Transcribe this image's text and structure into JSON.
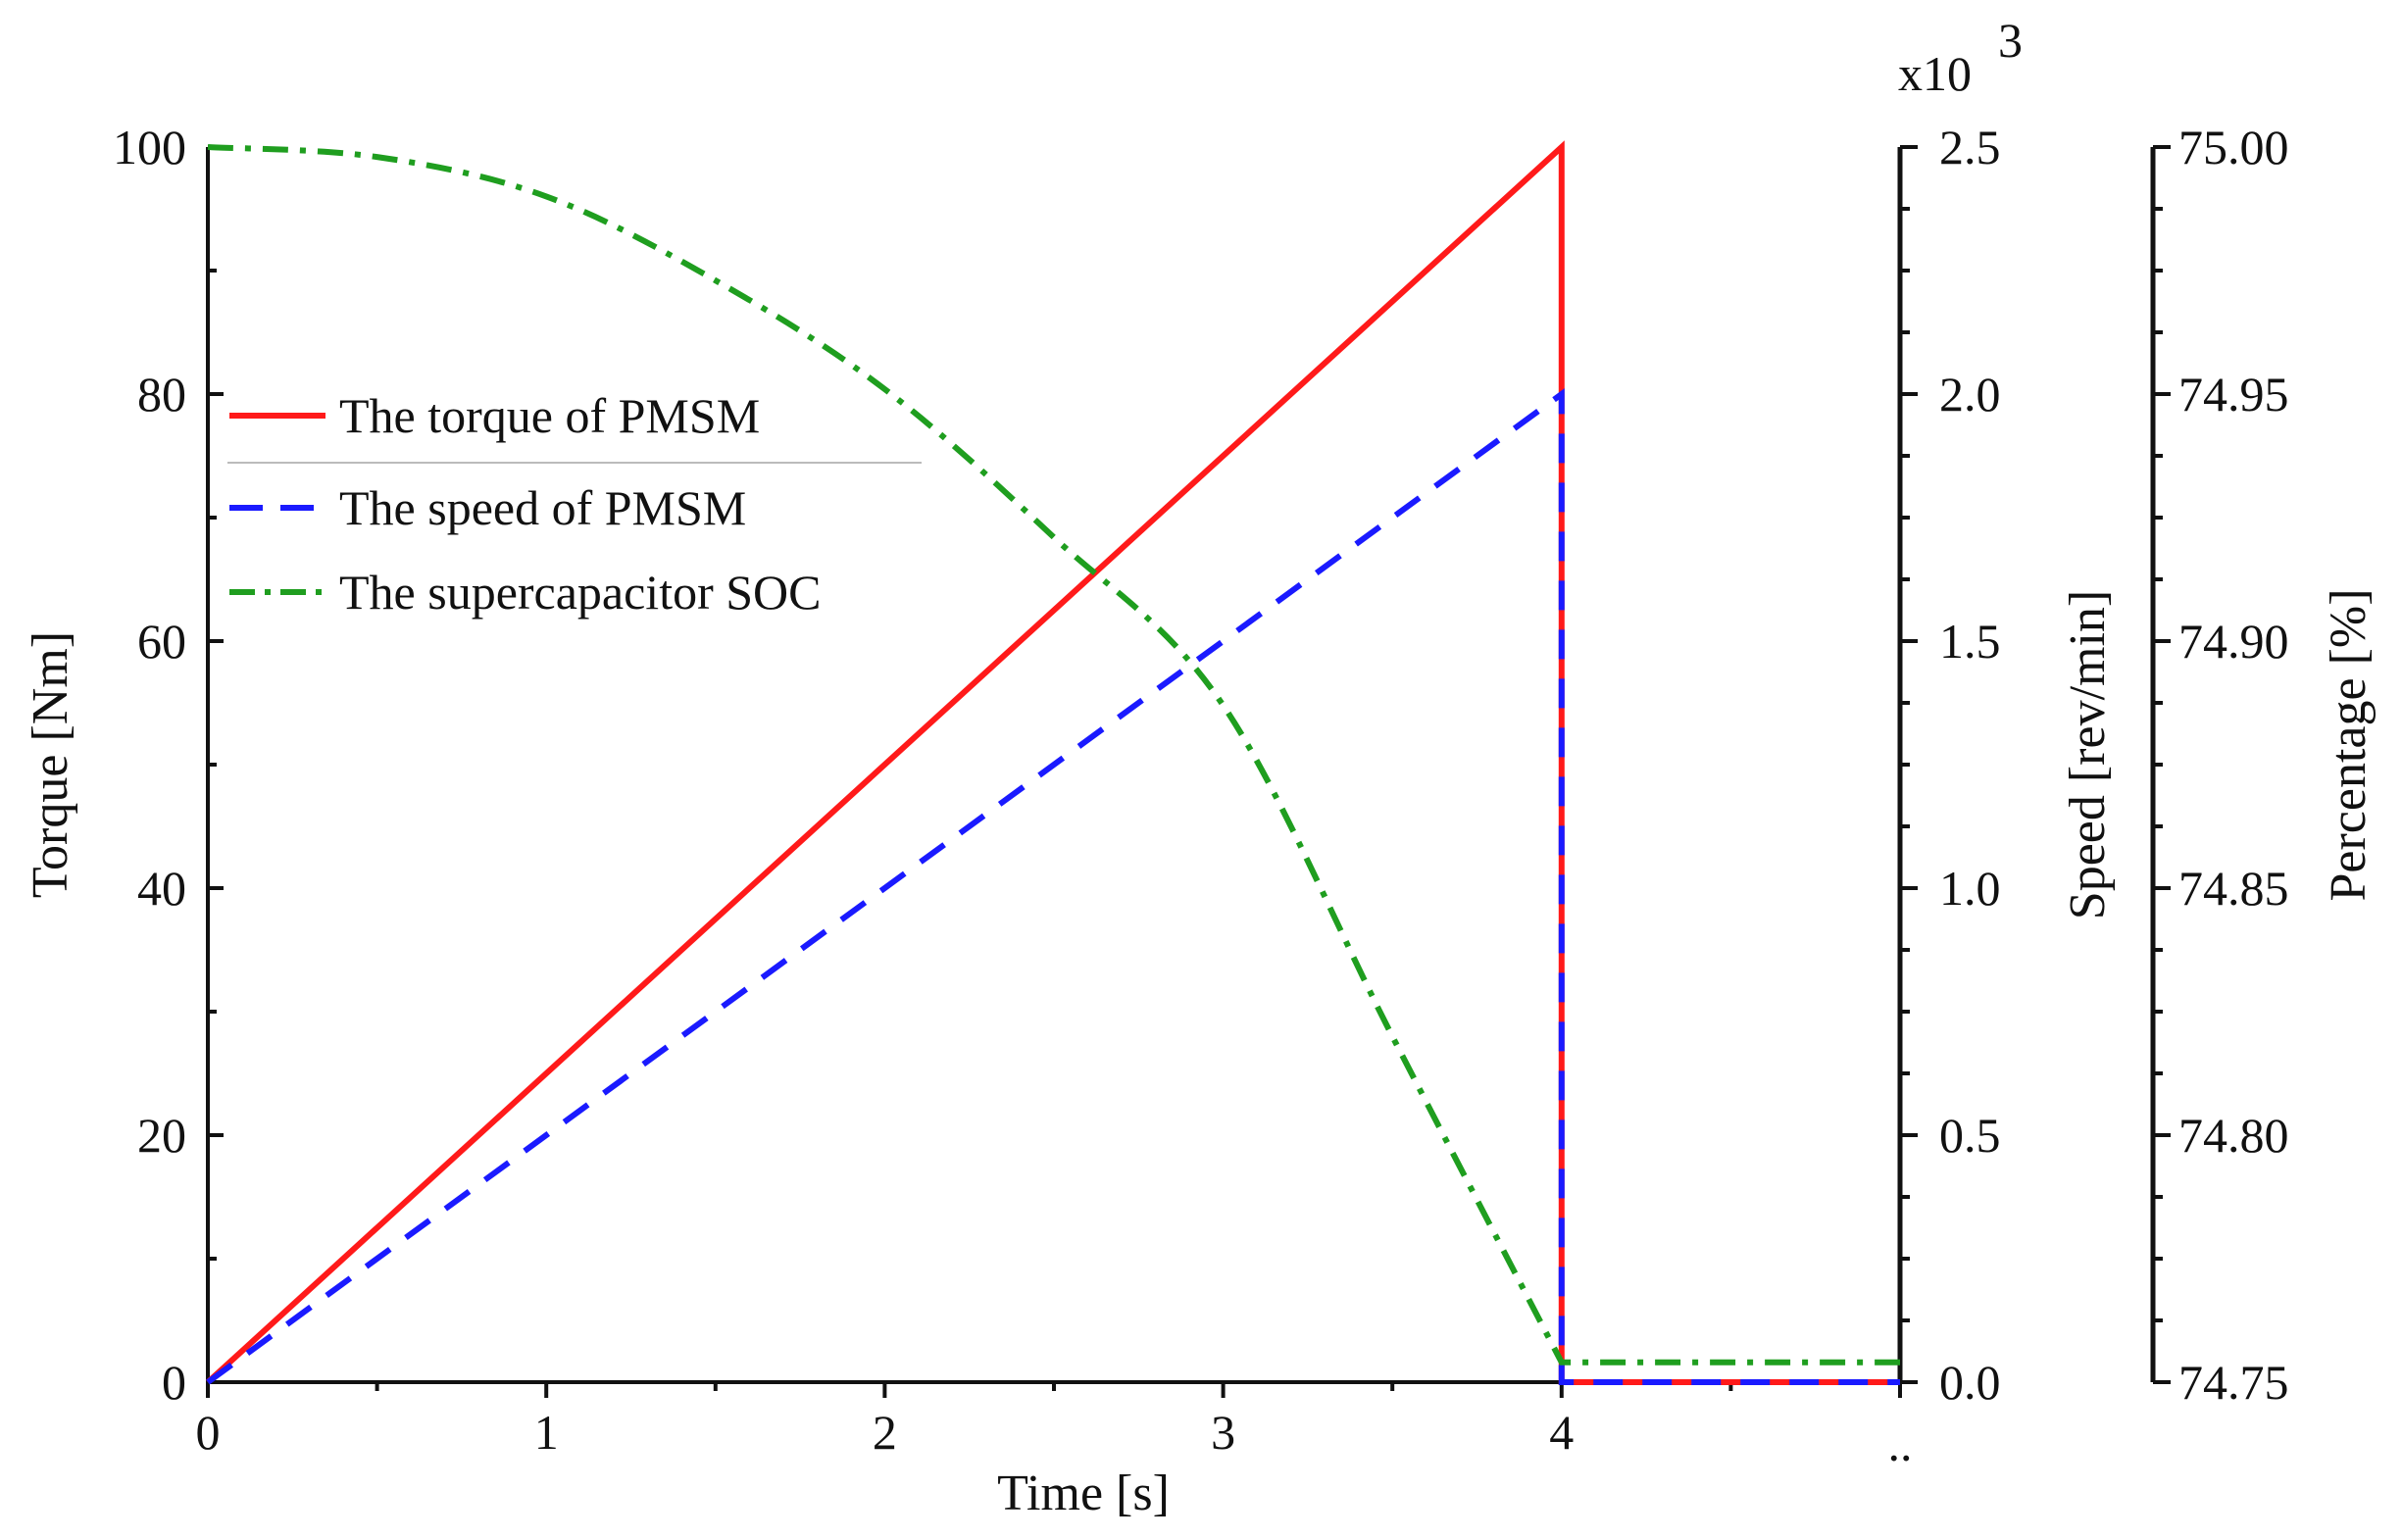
{
  "chart_data": {
    "type": "line",
    "title": "",
    "xlabel": "Time [s]",
    "xlim": [
      0,
      5
    ],
    "xticks": [
      0,
      1,
      2,
      3,
      4
    ],
    "xtick_labels": [
      "0",
      "1",
      "2",
      "3",
      "4"
    ],
    "x_extra_label": "..",
    "y_axes": [
      {
        "id": "torque",
        "label": "Torque [Nm]",
        "side": "left",
        "lim": [
          0,
          100
        ],
        "ticks": [
          0,
          20,
          40,
          60,
          80,
          100
        ],
        "tick_labels": [
          "0",
          "20",
          "40",
          "60",
          "80",
          "100"
        ]
      },
      {
        "id": "speed",
        "label": "Speed [rev/min]",
        "side": "right",
        "lim": [
          0,
          2.5
        ],
        "multiplier_label": "x10",
        "multiplier_exp": "3",
        "ticks": [
          0,
          0.5,
          1.0,
          1.5,
          2.0,
          2.5
        ],
        "tick_labels": [
          "0.0",
          "0.5",
          "1.0",
          "1.5",
          "2.0",
          "2.5"
        ]
      },
      {
        "id": "soc",
        "label": "Percentage [%]",
        "side": "right-outer",
        "lim": [
          74.75,
          75.0
        ],
        "ticks": [
          74.75,
          74.8,
          74.85,
          74.9,
          74.95,
          75.0
        ],
        "tick_labels": [
          "74.75",
          "74.80",
          "74.85",
          "74.90",
          "74.95",
          "75.00"
        ]
      }
    ],
    "series": [
      {
        "name": "The torque of PMSM",
        "axis": "torque",
        "color": "#ff1a1a",
        "style": "solid",
        "x": [
          0,
          4,
          4,
          5
        ],
        "y": [
          0,
          100,
          0,
          0
        ]
      },
      {
        "name": "The speed of PMSM",
        "axis": "speed",
        "color": "#1a1aff",
        "style": "dashed",
        "x": [
          0,
          4,
          4,
          5
        ],
        "y": [
          0,
          2.0,
          0,
          0
        ]
      },
      {
        "name": "The supercapacitor SOC",
        "axis": "soc",
        "color": "#1f9e1f",
        "style": "dashdot",
        "x": [
          0,
          0.5,
          1.0,
          1.5,
          2.0,
          2.5,
          3.0,
          3.5,
          4.0,
          4.0,
          5.0
        ],
        "y": [
          75.0,
          74.998,
          74.99,
          74.973,
          74.951,
          74.921,
          74.887,
          74.82,
          74.754,
          74.754,
          74.754
        ]
      }
    ],
    "legend": {
      "position": "upper-left",
      "entries": [
        "The torque of PMSM",
        "The speed of PMSM",
        "The supercapacitor SOC"
      ]
    },
    "grid": false
  }
}
